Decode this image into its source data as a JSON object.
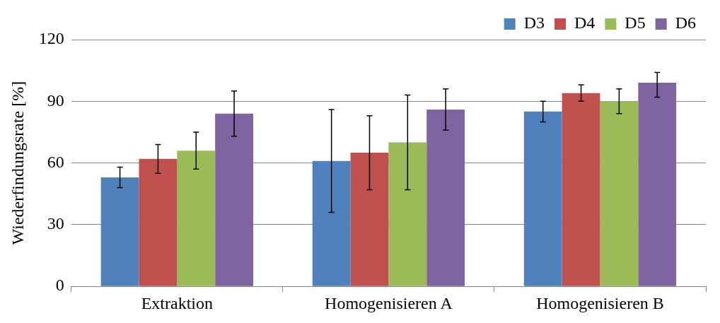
{
  "chart_data": {
    "type": "bar",
    "ylabel": "Wiederfindungsrate [%]",
    "categories": [
      "Extraktion",
      "Homogenisieren A",
      "Homogenisieren B"
    ],
    "series": [
      {
        "name": "D3",
        "color": "#4f81bd",
        "values": [
          53,
          61,
          85
        ],
        "errors": [
          [
            48,
            58
          ],
          [
            36,
            86
          ],
          [
            80,
            90
          ]
        ]
      },
      {
        "name": "D4",
        "color": "#c0504d",
        "values": [
          62,
          65,
          94
        ],
        "errors": [
          [
            55,
            69
          ],
          [
            47,
            83
          ],
          [
            90,
            98
          ]
        ]
      },
      {
        "name": "D5",
        "color": "#9bbb59",
        "values": [
          66,
          70,
          90
        ],
        "errors": [
          [
            57,
            75
          ],
          [
            47,
            93
          ],
          [
            84,
            96
          ]
        ]
      },
      {
        "name": "D6",
        "color": "#8064a2",
        "values": [
          84,
          86,
          99
        ],
        "errors": [
          [
            73,
            95
          ],
          [
            76,
            96
          ],
          [
            92,
            104
          ]
        ]
      }
    ],
    "ylim": [
      0,
      120
    ],
    "yticks": [
      0,
      30,
      60,
      90,
      120
    ],
    "grid": "y",
    "legend": "top right"
  }
}
